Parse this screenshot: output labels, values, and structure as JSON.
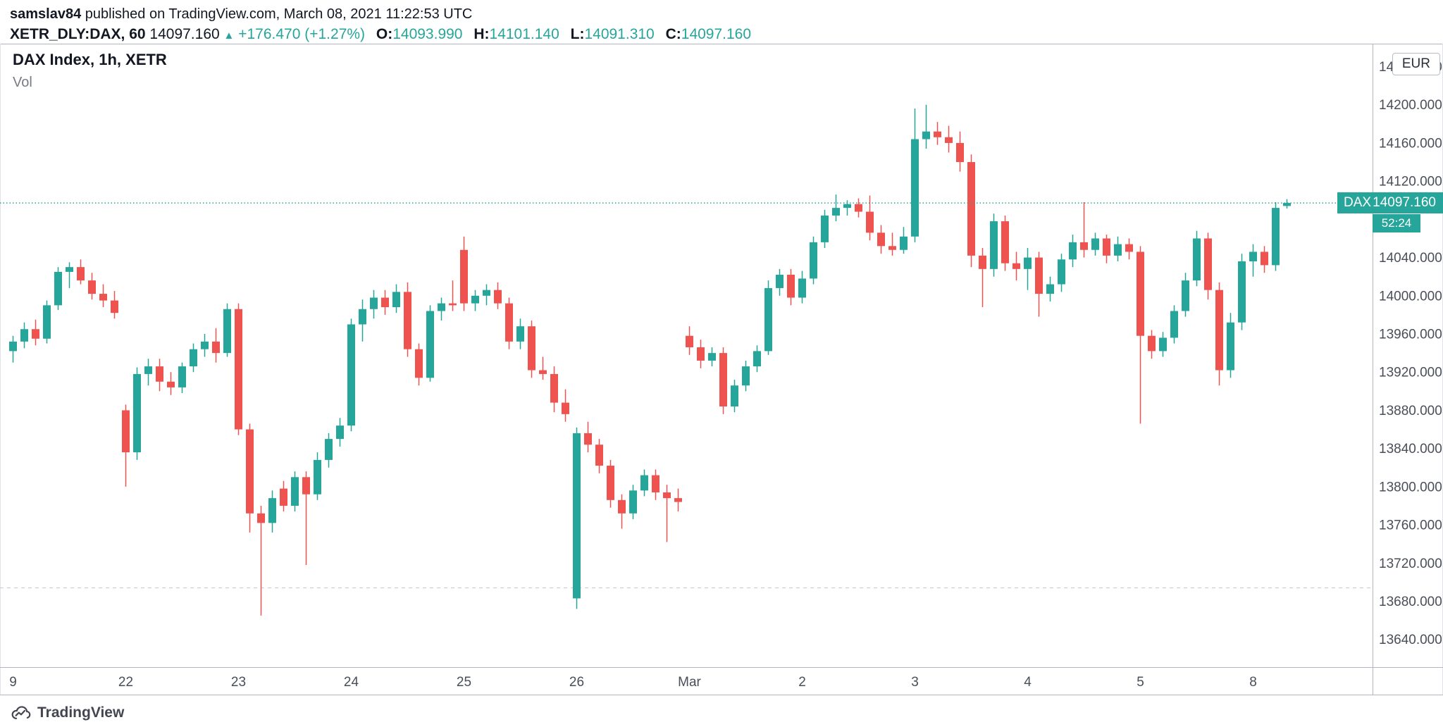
{
  "header": {
    "byline_user": "samslav84",
    "byline_rest": "published on TradingView.com, March 08, 2021 11:22:53 UTC",
    "symbol_line": {
      "symbol": "XETR_DLY:DAX, 60",
      "last": "14097.160",
      "direction_icon": "▲",
      "change": "+176.470 (+1.27%)",
      "o_label": "O:",
      "o": "14093.990",
      "h_label": "H:",
      "h": "14101.140",
      "l_label": "L:",
      "l": "14091.310",
      "c_label": "C:",
      "c": "14097.160"
    }
  },
  "legend": {
    "title": "DAX Index, 1h, XETR",
    "vol_label": "Vol"
  },
  "axis": {
    "currency_button": "EUR"
  },
  "price_label": {
    "tag": "DAX",
    "price": "14097.160",
    "countdown": "52:24"
  },
  "logo": {
    "text": "TradingView"
  },
  "colors": {
    "up": "#26a69a",
    "down": "#ef5350",
    "axis_text": "#4a4e59",
    "border": "#b2b5be",
    "dashed_line": "#c5c8ce",
    "header_text": "#131722"
  },
  "chart_data": {
    "type": "candlestick",
    "symbol": "DAX Index",
    "interval": "1h",
    "exchange": "XETR",
    "currency": "EUR",
    "ylim": [
      13611,
      14264
    ],
    "current_price": 14097.16,
    "dashed_level": 13694,
    "y_ticks": [
      "14240.000",
      "14200.000",
      "14160.000",
      "14120.000",
      "14040.000",
      "14000.000",
      "13960.000",
      "13920.000",
      "13880.000",
      "13840.000",
      "13800.000",
      "13760.000",
      "13720.000",
      "13680.000",
      "13640.000"
    ],
    "x_ticks": [
      {
        "i": 0,
        "label": "9"
      },
      {
        "i": 10,
        "label": "22"
      },
      {
        "i": 20,
        "label": "23"
      },
      {
        "i": 30,
        "label": "24"
      },
      {
        "i": 40,
        "label": "25"
      },
      {
        "i": 50,
        "label": "26"
      },
      {
        "i": 60,
        "label": "Mar"
      },
      {
        "i": 70,
        "label": "2"
      },
      {
        "i": 80,
        "label": "3"
      },
      {
        "i": 90,
        "label": "4"
      },
      {
        "i": 100,
        "label": "5"
      },
      {
        "i": 110,
        "label": "8"
      }
    ],
    "candles": [
      [
        13942,
        13958,
        13930,
        13952
      ],
      [
        13952,
        13972,
        13945,
        13965
      ],
      [
        13965,
        13975,
        13948,
        13955
      ],
      [
        13955,
        13995,
        13950,
        13990
      ],
      [
        13990,
        14030,
        13985,
        14025
      ],
      [
        14025,
        14035,
        14008,
        14030
      ],
      [
        14030,
        14038,
        14012,
        14016
      ],
      [
        14016,
        14024,
        13996,
        14002
      ],
      [
        14002,
        14012,
        13988,
        13995
      ],
      [
        13995,
        14005,
        13976,
        13982
      ],
      [
        13880,
        13886,
        13800,
        13836
      ],
      [
        13836,
        13925,
        13828,
        13918
      ],
      [
        13918,
        13934,
        13906,
        13926
      ],
      [
        13926,
        13934,
        13900,
        13910
      ],
      [
        13910,
        13920,
        13896,
        13904
      ],
      [
        13904,
        13930,
        13898,
        13926
      ],
      [
        13926,
        13950,
        13920,
        13944
      ],
      [
        13944,
        13960,
        13936,
        13952
      ],
      [
        13952,
        13966,
        13930,
        13940
      ],
      [
        13940,
        13992,
        13936,
        13986
      ],
      [
        13986,
        13992,
        13854,
        13860
      ],
      [
        13860,
        13866,
        13752,
        13772
      ],
      [
        13772,
        13780,
        13665,
        13762
      ],
      [
        13762,
        13796,
        13752,
        13788
      ],
      [
        13798,
        13806,
        13774,
        13780
      ],
      [
        13780,
        13816,
        13774,
        13810
      ],
      [
        13810,
        13816,
        13718,
        13792
      ],
      [
        13792,
        13836,
        13786,
        13828
      ],
      [
        13828,
        13856,
        13820,
        13850
      ],
      [
        13850,
        13872,
        13842,
        13864
      ],
      [
        13864,
        13976,
        13858,
        13970
      ],
      [
        13970,
        13996,
        13952,
        13986
      ],
      [
        13986,
        14006,
        13976,
        13998
      ],
      [
        13998,
        14006,
        13980,
        13988
      ],
      [
        13988,
        14012,
        13982,
        14004
      ],
      [
        14004,
        14014,
        13936,
        13944
      ],
      [
        13944,
        13950,
        13906,
        13914
      ],
      [
        13914,
        13990,
        13910,
        13984
      ],
      [
        13984,
        13998,
        13974,
        13992
      ],
      [
        13992,
        14016,
        13984,
        13990
      ],
      [
        14048,
        14062,
        13984,
        13992
      ],
      [
        13992,
        14006,
        13984,
        14000
      ],
      [
        14000,
        14012,
        13990,
        14006
      ],
      [
        14006,
        14014,
        13986,
        13992
      ],
      [
        13992,
        13998,
        13944,
        13952
      ],
      [
        13952,
        13976,
        13944,
        13968
      ],
      [
        13968,
        13974,
        13914,
        13922
      ],
      [
        13922,
        13936,
        13912,
        13918
      ],
      [
        13918,
        13926,
        13878,
        13888
      ],
      [
        13888,
        13902,
        13868,
        13876
      ],
      [
        13683,
        13862,
        13672,
        13856
      ],
      [
        13856,
        13868,
        13836,
        13844
      ],
      [
        13844,
        13850,
        13814,
        13822
      ],
      [
        13822,
        13828,
        13778,
        13786
      ],
      [
        13786,
        13792,
        13756,
        13772
      ],
      [
        13772,
        13802,
        13766,
        13796
      ],
      [
        13796,
        13818,
        13790,
        13812
      ],
      [
        13812,
        13818,
        13786,
        13794
      ],
      [
        13794,
        13802,
        13742,
        13788
      ],
      [
        13788,
        13798,
        13774,
        13784
      ],
      [
        13958,
        13968,
        13938,
        13946
      ],
      [
        13946,
        13954,
        13924,
        13932
      ],
      [
        13932,
        13946,
        13926,
        13940
      ],
      [
        13940,
        13946,
        13876,
        13884
      ],
      [
        13884,
        13912,
        13878,
        13906
      ],
      [
        13906,
        13932,
        13900,
        13926
      ],
      [
        13926,
        13948,
        13920,
        13942
      ],
      [
        13942,
        14016,
        13938,
        14008
      ],
      [
        14008,
        14028,
        14000,
        14022
      ],
      [
        14022,
        14028,
        13990,
        13998
      ],
      [
        13998,
        14026,
        13992,
        14018
      ],
      [
        14018,
        14062,
        14012,
        14056
      ],
      [
        14056,
        14090,
        14050,
        14084
      ],
      [
        14084,
        14106,
        14078,
        14092
      ],
      [
        14092,
        14100,
        14084,
        14096
      ],
      [
        14096,
        14102,
        14082,
        14088
      ],
      [
        14088,
        14105,
        14058,
        14066
      ],
      [
        14066,
        14074,
        14044,
        14052
      ],
      [
        14052,
        14066,
        14042,
        14048
      ],
      [
        14048,
        14072,
        14044,
        14062
      ],
      [
        14062,
        14196,
        14056,
        14164
      ],
      [
        14164,
        14200,
        14154,
        14172
      ],
      [
        14172,
        14182,
        14158,
        14166
      ],
      [
        14166,
        14178,
        14150,
        14160
      ],
      [
        14160,
        14172,
        14130,
        14140
      ],
      [
        14140,
        14148,
        14030,
        14042
      ],
      [
        14042,
        14050,
        13988,
        14028
      ],
      [
        14028,
        14086,
        14020,
        14078
      ],
      [
        14078,
        14084,
        14026,
        14034
      ],
      [
        14034,
        14046,
        14016,
        14028
      ],
      [
        14028,
        14050,
        14006,
        14040
      ],
      [
        14040,
        14046,
        13978,
        14002
      ],
      [
        14002,
        14020,
        13994,
        14012
      ],
      [
        14012,
        14044,
        14004,
        14038
      ],
      [
        14038,
        14064,
        14030,
        14056
      ],
      [
        14056,
        14098,
        14040,
        14048
      ],
      [
        14048,
        14066,
        14042,
        14060
      ],
      [
        14060,
        14064,
        14034,
        14042
      ],
      [
        14042,
        14062,
        14036,
        14054
      ],
      [
        14054,
        14060,
        14038,
        14046
      ],
      [
        14046,
        14052,
        13866,
        13958
      ],
      [
        13958,
        13964,
        13934,
        13942
      ],
      [
        13942,
        13962,
        13936,
        13956
      ],
      [
        13956,
        13990,
        13950,
        13984
      ],
      [
        13984,
        14024,
        13978,
        14016
      ],
      [
        14016,
        14068,
        14010,
        14060
      ],
      [
        14060,
        14066,
        13996,
        14006
      ],
      [
        14006,
        14014,
        13906,
        13922
      ],
      [
        13922,
        13982,
        13914,
        13972
      ],
      [
        13972,
        14044,
        13964,
        14036
      ],
      [
        14036,
        14054,
        14020,
        14046
      ],
      [
        14046,
        14052,
        14024,
        14032
      ],
      [
        14032,
        14098,
        14026,
        14092
      ],
      [
        14093.99,
        14101.14,
        14091.31,
        14097.16
      ]
    ]
  }
}
